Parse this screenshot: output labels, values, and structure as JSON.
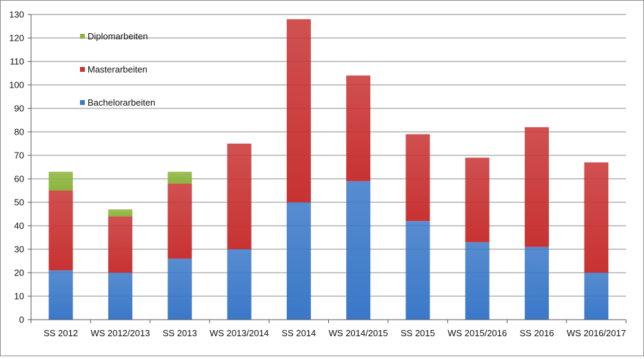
{
  "chart_data": {
    "type": "bar",
    "stacked": true,
    "title": "",
    "xlabel": "",
    "ylabel": "",
    "ylim": [
      0,
      130
    ],
    "yticks": [
      0,
      10,
      20,
      30,
      40,
      50,
      60,
      70,
      80,
      90,
      100,
      110,
      120,
      130
    ],
    "grid": true,
    "legend_position": "top-left",
    "categories": [
      "SS 2012",
      "WS 2012/2013",
      "SS 2013",
      "WS 2013/2014",
      "SS 2014",
      "WS 2014/2015",
      "SS 2015",
      "WS 2015/2016",
      "SS 2016",
      "WS 2016/2017"
    ],
    "series": [
      {
        "name": "Bachelorarbeiten",
        "color": "#3a78c8",
        "values": [
          21,
          20,
          26,
          30,
          50,
          59,
          42,
          33,
          31,
          20
        ]
      },
      {
        "name": "Masterarbeiten",
        "color": "#c83232",
        "values": [
          34,
          24,
          32,
          45,
          78,
          45,
          37,
          36,
          51,
          47
        ]
      },
      {
        "name": "Diplomarbeiten",
        "color": "#8cb43c",
        "values": [
          8,
          3,
          5,
          0,
          0,
          0,
          0,
          0,
          0,
          0
        ]
      }
    ],
    "legend_order": [
      "Diplomarbeiten",
      "Masterarbeiten",
      "Bachelorarbeiten"
    ]
  }
}
